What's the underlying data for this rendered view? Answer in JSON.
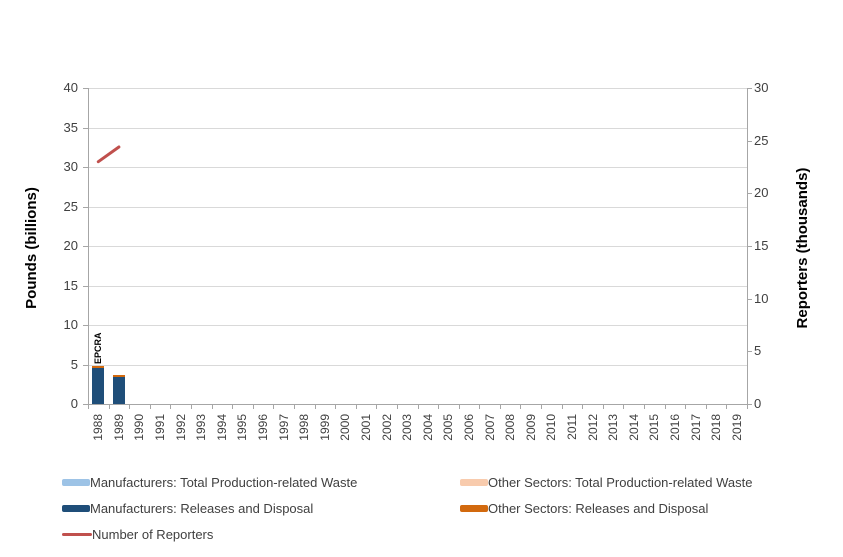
{
  "chart_data": {
    "type": "combo-bar-line",
    "title": "",
    "categories": [
      "1988",
      "1989",
      "1990",
      "1991",
      "1992",
      "1993",
      "1994",
      "1995",
      "1996",
      "1997",
      "1998",
      "1999",
      "2000",
      "2001",
      "2002",
      "2003",
      "2004",
      "2005",
      "2006",
      "2007",
      "2008",
      "2009",
      "2010",
      "2011",
      "2012",
      "2013",
      "2014",
      "2015",
      "2016",
      "2017",
      "2018",
      "2019"
    ],
    "left_axis": {
      "label": "Pounds (billions)",
      "min": 0,
      "max": 40,
      "step": 5,
      "tick_labels": [
        "0",
        "5",
        "10",
        "15",
        "20",
        "25",
        "30",
        "35",
        "40"
      ]
    },
    "right_axis": {
      "label": "Reporters (thousands)",
      "min": 0,
      "max": 30,
      "step": 5,
      "tick_labels": [
        "0",
        "5",
        "10",
        "15",
        "20",
        "25",
        "30"
      ]
    },
    "grid": true,
    "legend_position": "bottom",
    "series": [
      {
        "name": "Manufacturers: Total Production-related Waste",
        "type": "bar",
        "axis": "left",
        "color": "#9dc3e6",
        "values": [
          null,
          null,
          null,
          null,
          null,
          null,
          null,
          null,
          null,
          null,
          null,
          null,
          null,
          null,
          null,
          null,
          null,
          null,
          null,
          null,
          null,
          null,
          null,
          null,
          null,
          null,
          null,
          null,
          null,
          null,
          null,
          null
        ]
      },
      {
        "name": "Other Sectors: Total Production-related Waste",
        "type": "bar",
        "axis": "left",
        "color": "#f8cbad",
        "values": [
          null,
          null,
          null,
          null,
          null,
          null,
          null,
          null,
          null,
          null,
          null,
          null,
          null,
          null,
          null,
          null,
          null,
          null,
          null,
          null,
          null,
          null,
          null,
          null,
          null,
          null,
          null,
          null,
          null,
          null,
          null,
          null
        ]
      },
      {
        "name": "Manufacturers: Releases and Disposal",
        "type": "bar",
        "axis": "left",
        "color": "#1f4e79",
        "values": [
          4.6,
          3.45,
          null,
          null,
          null,
          null,
          null,
          null,
          null,
          null,
          null,
          null,
          null,
          null,
          null,
          null,
          null,
          null,
          null,
          null,
          null,
          null,
          null,
          null,
          null,
          null,
          null,
          null,
          null,
          null,
          null,
          null
        ]
      },
      {
        "name": "Other Sectors: Releases and Disposal",
        "type": "bar",
        "axis": "left",
        "color": "#d2690e",
        "values": [
          0.2,
          0.2,
          null,
          null,
          null,
          null,
          null,
          null,
          null,
          null,
          null,
          null,
          null,
          null,
          null,
          null,
          null,
          null,
          null,
          null,
          null,
          null,
          null,
          null,
          null,
          null,
          null,
          null,
          null,
          null,
          null,
          null
        ]
      },
      {
        "name": "Number of Reporters",
        "type": "line",
        "axis": "right",
        "color": "#c0504d",
        "values": [
          23,
          24.4,
          null,
          null,
          null,
          null,
          null,
          null,
          null,
          null,
          null,
          null,
          null,
          null,
          null,
          null,
          null,
          null,
          null,
          null,
          null,
          null,
          null,
          null,
          null,
          null,
          null,
          null,
          null,
          null,
          null,
          null
        ]
      }
    ],
    "annotations": [
      {
        "text": "EPCRA",
        "category": "1988"
      }
    ]
  },
  "style_colors": {
    "gridline": "#d9d9d9",
    "axis": "#a6a6a6",
    "tick_text": "#404040"
  }
}
